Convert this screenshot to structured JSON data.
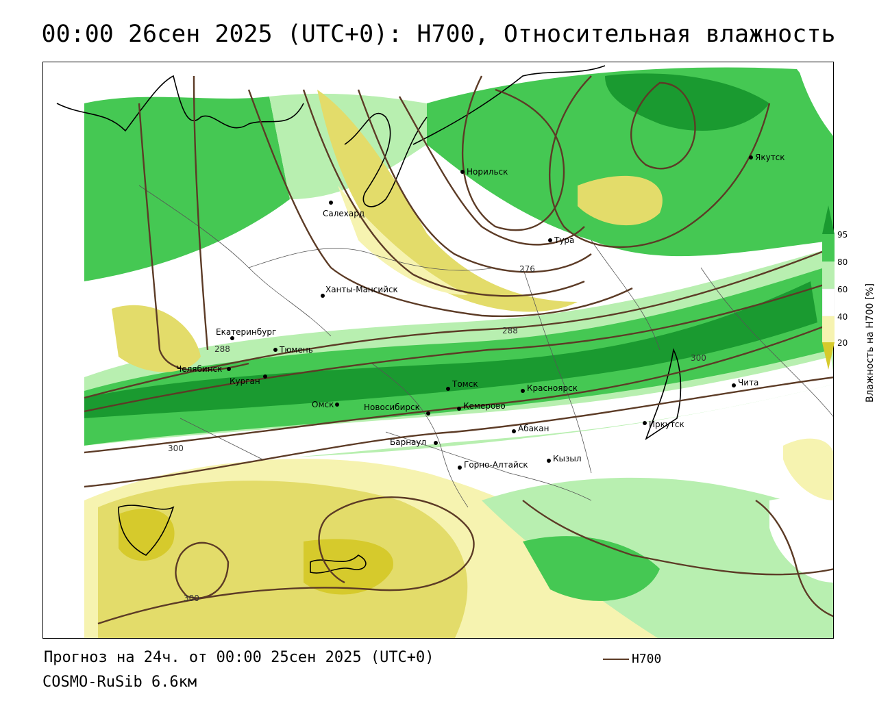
{
  "title": "00:00 26сен 2025 (UTC+0): H700, Относительная влажность",
  "footer": {
    "forecast": "Прогноз на 24ч. от 00:00 25сен 2025 (UTC+0)",
    "model": "COSMO-RuSib 6.6км",
    "legend_label": "H700"
  },
  "legend": {
    "title": "Влажность на H700 [%]",
    "ticks": [
      "95",
      "80",
      "60",
      "40",
      "20"
    ],
    "colors": {
      "very_dry": "#d6ca2c",
      "dry": "#e3dc6a",
      "semi_dry": "#f6f3b0",
      "neutral": "#ffffff",
      "light_green": "#b8efb0",
      "green": "#45c853",
      "dark_green": "#1a9a30"
    }
  },
  "colors": {
    "contour": "#5c3b26",
    "border": "#000000",
    "region_border": "#555555"
  },
  "cities": [
    {
      "name": "Норильск"
    },
    {
      "name": "Якутск"
    },
    {
      "name": "Салехард"
    },
    {
      "name": "Тура"
    },
    {
      "name": "Ханты-Мансийск"
    },
    {
      "name": "Екатеринбург"
    },
    {
      "name": "Тюмень"
    },
    {
      "name": "Челябинск"
    },
    {
      "name": "Курган"
    },
    {
      "name": "Омск"
    },
    {
      "name": "Новосибирск"
    },
    {
      "name": "Томск"
    },
    {
      "name": "Кемерово"
    },
    {
      "name": "Красноярск"
    },
    {
      "name": "Абакан"
    },
    {
      "name": "Барнаул"
    },
    {
      "name": "Горно-Алтайск"
    },
    {
      "name": "Кызыл"
    },
    {
      "name": "Иркутск"
    },
    {
      "name": "Чита"
    }
  ],
  "contour_labels": [
    "276",
    "288",
    "288",
    "300",
    "300",
    "300"
  ]
}
